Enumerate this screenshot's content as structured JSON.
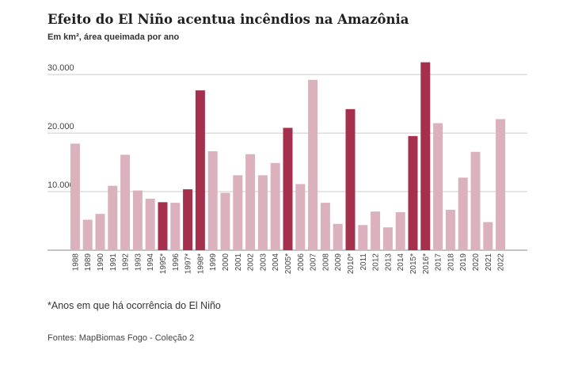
{
  "header": {
    "title": "Efeito do El Niño acentua incêndios na Amazônia",
    "subtitle": "Em km², área queimada por ano"
  },
  "footer": {
    "note": "*Anos em que há ocorrência do El Niño",
    "source": "Fontes: MapBiomas Fogo - Coleção 2"
  },
  "colors": {
    "normal": "#dbb1bd",
    "el_nino": "#a5304e",
    "gridline": "#cccccc",
    "baseline": "#888888",
    "tick_text": "#444444"
  },
  "chart_data": {
    "type": "bar",
    "title": "Efeito do El Niño acentua incêndios na Amazônia",
    "subtitle": "Em km², área queimada por ano",
    "categories": [
      "1988",
      "1989",
      "1990",
      "1991",
      "1992",
      "1993",
      "1994",
      "1995*",
      "1996",
      "1997*",
      "1998*",
      "1999",
      "2000",
      "2001",
      "2002",
      "2003",
      "2004",
      "2005*",
      "2006",
      "2007",
      "2008",
      "2009",
      "2010*",
      "2011",
      "2012",
      "2013",
      "2014",
      "2015*",
      "2016*",
      "2017",
      "2018",
      "2019",
      "2020",
      "2021",
      "2022"
    ],
    "values": [
      18200,
      5200,
      6200,
      11000,
      16300,
      10200,
      8800,
      8200,
      8100,
      10400,
      27300,
      16900,
      9800,
      12800,
      16400,
      12800,
      14900,
      20900,
      11300,
      29100,
      8100,
      4500,
      24100,
      4300,
      6600,
      3900,
      6500,
      19500,
      32100,
      21700,
      6900,
      12400,
      16800,
      4800,
      22400
    ],
    "el_nino": [
      false,
      false,
      false,
      false,
      false,
      false,
      false,
      true,
      false,
      true,
      true,
      false,
      false,
      false,
      false,
      false,
      false,
      true,
      false,
      false,
      false,
      false,
      true,
      false,
      false,
      false,
      false,
      true,
      true,
      false,
      false,
      false,
      false,
      false,
      false
    ],
    "yticks": [
      10000,
      20000,
      30000
    ],
    "ytick_labels": [
      "10.000",
      "20.000",
      "30.000"
    ],
    "ylim": [
      0,
      33000
    ],
    "xlabel": "",
    "ylabel": "",
    "grid": true
  }
}
